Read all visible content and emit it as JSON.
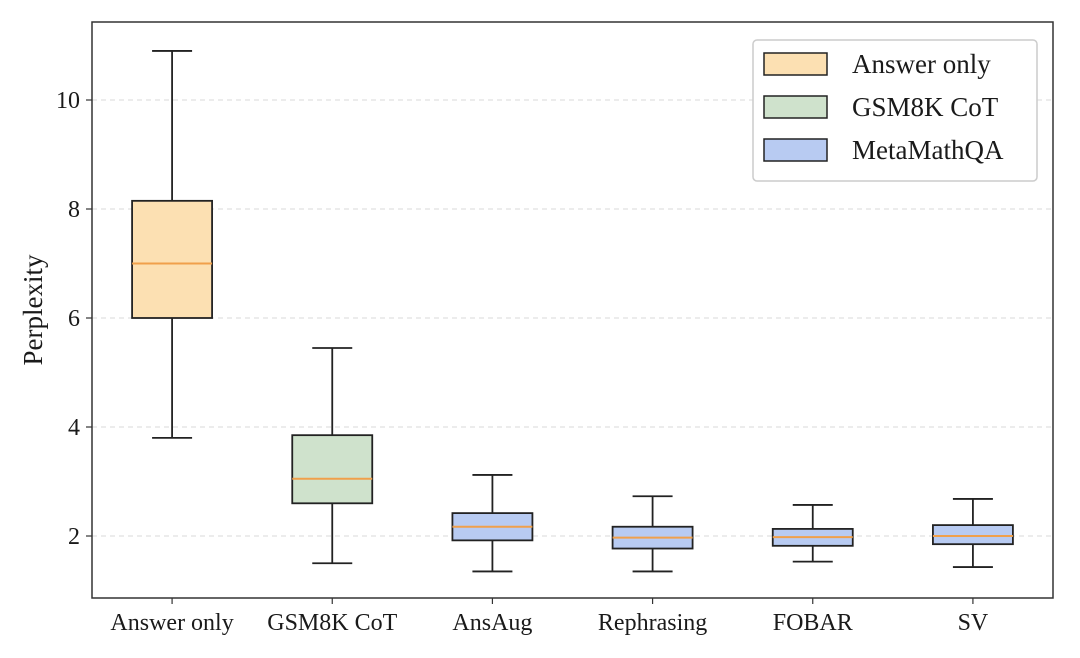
{
  "chart_data": {
    "type": "box",
    "title": "",
    "xlabel": "",
    "ylabel": "Perplexity",
    "ylim": [
      0.9,
      11.5
    ],
    "yticks": [
      2,
      4,
      6,
      8,
      10
    ],
    "grid": "horizontal dashed",
    "legend_position": "top-right",
    "groups": [
      {
        "name": "Answer only",
        "color": "#fce0b2"
      },
      {
        "name": "GSM8K CoT",
        "color": "#cfe2cc"
      },
      {
        "name": "MetaMathQA",
        "color": "#b8cbf2"
      }
    ],
    "median_color": "#f0a04b",
    "categories": [
      "Answer only",
      "GSM8K CoT",
      "AnsAug",
      "Rephrasing",
      "FOBAR",
      "SV"
    ],
    "boxes": [
      {
        "category": "Answer only",
        "group": "Answer only",
        "whisker_low": 3.8,
        "q1": 6.0,
        "median": 7.0,
        "q3": 8.15,
        "whisker_high": 10.9
      },
      {
        "category": "GSM8K CoT",
        "group": "GSM8K CoT",
        "whisker_low": 1.5,
        "q1": 2.6,
        "median": 3.05,
        "q3": 3.85,
        "whisker_high": 5.45
      },
      {
        "category": "AnsAug",
        "group": "MetaMathQA",
        "whisker_low": 1.35,
        "q1": 1.92,
        "median": 2.17,
        "q3": 2.42,
        "whisker_high": 3.12
      },
      {
        "category": "Rephrasing",
        "group": "MetaMathQA",
        "whisker_low": 1.35,
        "q1": 1.77,
        "median": 1.97,
        "q3": 2.17,
        "whisker_high": 2.73
      },
      {
        "category": "FOBAR",
        "group": "MetaMathQA",
        "whisker_low": 1.53,
        "q1": 1.82,
        "median": 1.98,
        "q3": 2.13,
        "whisker_high": 2.57
      },
      {
        "category": "SV",
        "group": "MetaMathQA",
        "whisker_low": 1.43,
        "q1": 1.85,
        "median": 2.0,
        "q3": 2.2,
        "whisker_high": 2.68
      }
    ]
  }
}
